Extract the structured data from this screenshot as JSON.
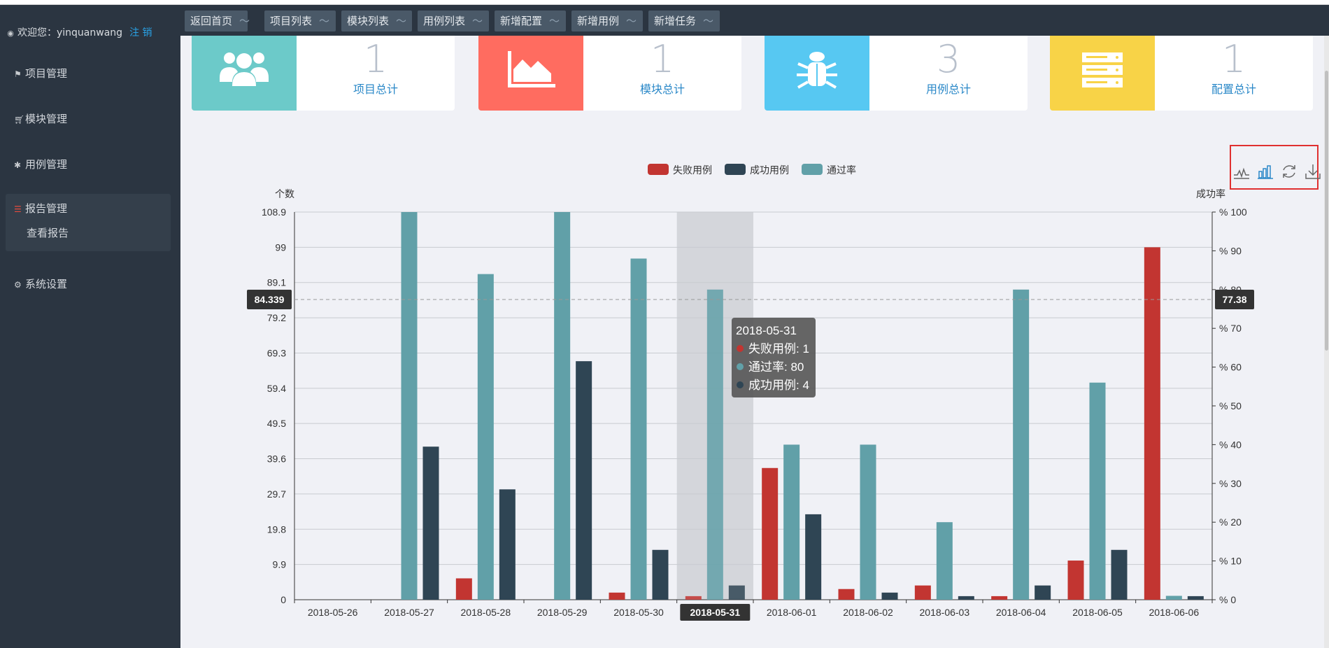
{
  "sidebar": {
    "welcome": "欢迎您：yinquanwang",
    "logout": "注 销",
    "items": [
      {
        "label": "项目管理",
        "icon": "flag-icon"
      },
      {
        "label": "模块管理",
        "icon": "cart-icon"
      },
      {
        "label": "用例管理",
        "icon": "bug-icon"
      },
      {
        "label": "报告管理",
        "icon": "list-icon"
      },
      {
        "label": "系统设置",
        "icon": "gears-icon"
      }
    ],
    "subitem": "查看报告"
  },
  "tabs": [
    "返回首页",
    "项目列表",
    "模块列表",
    "用例列表",
    "新增配置",
    "新增用例",
    "新增任务"
  ],
  "tab_tilde": "〜",
  "cards": [
    {
      "value": "1",
      "label": "项目总计",
      "color": "#6ccac9",
      "icon": "users-icon"
    },
    {
      "value": "1",
      "label": "模块总计",
      "color": "#ff6c60",
      "icon": "area-chart-icon"
    },
    {
      "value": "3",
      "label": "用例总计",
      "color": "#57c8f2",
      "icon": "bug-icon"
    },
    {
      "value": "1",
      "label": "配置总计",
      "color": "#f8d347",
      "icon": "server-icon"
    }
  ],
  "chart_data": {
    "type": "bar",
    "legend": [
      "失败用例",
      "成功用例",
      "通过率"
    ],
    "legend_placement": "top-center",
    "colors": {
      "fail": "#c23531",
      "success": "#2f4554",
      "rate": "#61a0a8"
    },
    "ylabel_left": "个数",
    "ylabel_right": "成功率",
    "ylim_left": [
      0,
      108.9
    ],
    "ylim_right": [
      0,
      100
    ],
    "yticks_left": [
      "0",
      "9.9",
      "19.8",
      "29.7",
      "39.6",
      "49.5",
      "59.4",
      "69.3",
      "79.2",
      "89.1",
      "99",
      "108.9"
    ],
    "yticks_right": [
      "% 0",
      "% 10",
      "% 20",
      "% 30",
      "% 40",
      "% 50",
      "% 60",
      "% 70",
      "% 80",
      "% 90",
      "% 100"
    ],
    "categories": [
      "2018-05-26",
      "2018-05-27",
      "2018-05-28",
      "2018-05-29",
      "2018-05-30",
      "2018-05-31",
      "2018-06-01",
      "2018-06-02",
      "2018-06-03",
      "2018-06-04",
      "2018-06-05",
      "2018-06-06"
    ],
    "series": [
      {
        "name": "失败用例",
        "axis": "left",
        "values": [
          0,
          0,
          6,
          0,
          2,
          1,
          37,
          3,
          4,
          1,
          11,
          99
        ]
      },
      {
        "name": "通过率",
        "axis": "right",
        "values": [
          0,
          100,
          84,
          100,
          88,
          80,
          40,
          40,
          20,
          80,
          56,
          1
        ]
      },
      {
        "name": "成功用例",
        "axis": "left",
        "values": [
          0,
          43,
          31,
          67,
          14,
          4,
          24,
          2,
          1,
          4,
          14,
          1
        ]
      }
    ],
    "highlighted_category": "2018-05-31",
    "axis_pointer_left": "84.339",
    "axis_pointer_right": "77.38",
    "tooltip": {
      "title": "2018-05-31",
      "rows": [
        "失败用例: 1",
        "通过率: 80",
        "成功用例: 4"
      ]
    },
    "toolbox": [
      "line-chart-icon",
      "bar-chart-icon",
      "restore-icon",
      "download-icon"
    ]
  }
}
